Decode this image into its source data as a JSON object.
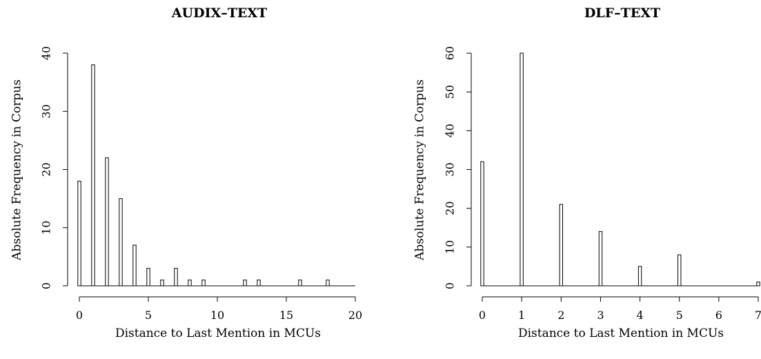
{
  "chart_data": [
    {
      "type": "bar",
      "title": "AUDIX–TEXT",
      "xlabel": "Distance to Last Mention in MCUs",
      "ylabel": "Absolute Frequency in Corpus",
      "xlim": [
        0,
        20
      ],
      "ylim": [
        0,
        40
      ],
      "x_ticks": [
        0,
        5,
        10,
        15,
        20
      ],
      "y_ticks": [
        0,
        10,
        20,
        30,
        40
      ],
      "grid": false,
      "x": [
        0,
        1,
        2,
        3,
        4,
        5,
        6,
        7,
        8,
        9,
        12,
        13,
        16,
        18
      ],
      "values": [
        18,
        38,
        22,
        15,
        7,
        3,
        1,
        3,
        1,
        1,
        1,
        1,
        1,
        1
      ]
    },
    {
      "type": "bar",
      "title": "DLF–TEXT",
      "xlabel": "Distance to Last Mention in MCUs",
      "ylabel": "Absolute Frequency in Corpus",
      "xlim": [
        0,
        7
      ],
      "ylim": [
        0,
        60
      ],
      "x_ticks": [
        0,
        1,
        2,
        3,
        4,
        5,
        6,
        7
      ],
      "y_ticks": [
        0,
        10,
        20,
        30,
        40,
        50,
        60
      ],
      "grid": false,
      "x": [
        0,
        1,
        2,
        3,
        4,
        5,
        7
      ],
      "values": [
        32,
        60,
        21,
        14,
        5,
        8,
        1
      ]
    }
  ]
}
